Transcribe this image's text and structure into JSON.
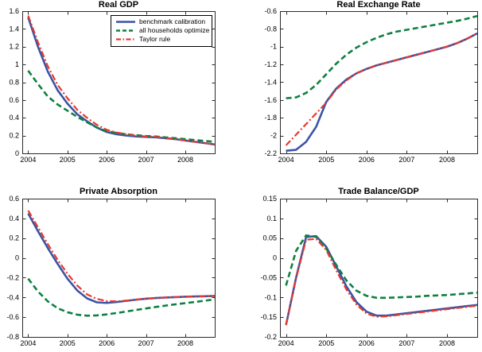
{
  "figure": {
    "background": "#ffffff",
    "axis_color": "#2a2a2a",
    "text_color": "#000000"
  },
  "legend": {
    "position": "top-right-inside-first-chart",
    "entries": [
      {
        "label": "benchmark calibration",
        "color": "#3a54a5",
        "dash": "solid"
      },
      {
        "label": "all households optimize",
        "color": "#0e8040",
        "dash": "dashed"
      },
      {
        "label": "Taylor rule",
        "color": "#e8392d",
        "dash": "dashdot"
      }
    ]
  },
  "chart_data": [
    {
      "type": "line",
      "title": "Real GDP",
      "xlabel": "",
      "ylabel": "",
      "xlim": [
        2003.85,
        2008.75
      ],
      "ylim": [
        0,
        1.6
      ],
      "xticks": [
        2004,
        2005,
        2006,
        2007,
        2008
      ],
      "xtick_labels": [
        "2004",
        "2005",
        "2006",
        "2007",
        "2008"
      ],
      "yticks": [
        0,
        0.2,
        0.4,
        0.6,
        0.8,
        1,
        1.2,
        1.4,
        1.6
      ],
      "ytick_labels": [
        "0",
        "0.2",
        "0.4",
        "0.6",
        "0.8",
        "1",
        "1.2",
        "1.4",
        "1.6"
      ],
      "x": [
        2004,
        2004.25,
        2004.5,
        2004.75,
        2005,
        2005.25,
        2005.5,
        2005.75,
        2006,
        2006.25,
        2006.5,
        2006.75,
        2007,
        2007.25,
        2007.5,
        2007.75,
        2008,
        2008.25,
        2008.5,
        2008.75
      ],
      "series": [
        {
          "name": "benchmark calibration",
          "color": "#3a54a5",
          "dash": "solid",
          "values": [
            1.53,
            1.2,
            0.92,
            0.71,
            0.56,
            0.44,
            0.36,
            0.29,
            0.24,
            0.215,
            0.2,
            0.19,
            0.185,
            0.18,
            0.17,
            0.16,
            0.145,
            0.13,
            0.115,
            0.1
          ]
        },
        {
          "name": "all households optimize",
          "color": "#0e8040",
          "dash": "dashed",
          "values": [
            0.93,
            0.78,
            0.64,
            0.55,
            0.48,
            0.41,
            0.35,
            0.29,
            0.25,
            0.23,
            0.215,
            0.205,
            0.195,
            0.19,
            0.18,
            0.17,
            0.16,
            0.15,
            0.14,
            0.13
          ]
        },
        {
          "name": "Taylor rule",
          "color": "#e8392d",
          "dash": "dashdot",
          "values": [
            1.55,
            1.25,
            0.98,
            0.77,
            0.62,
            0.49,
            0.4,
            0.32,
            0.265,
            0.235,
            0.215,
            0.2,
            0.19,
            0.185,
            0.175,
            0.16,
            0.145,
            0.13,
            0.115,
            0.1
          ]
        }
      ]
    },
    {
      "type": "line",
      "title": "Real Exchange Rate",
      "xlabel": "",
      "ylabel": "",
      "xlim": [
        2003.85,
        2008.75
      ],
      "ylim": [
        -2.2,
        -0.6
      ],
      "xticks": [
        2004,
        2005,
        2006,
        2007,
        2008
      ],
      "xtick_labels": [
        "2004",
        "2005",
        "2006",
        "2007",
        "2008"
      ],
      "yticks": [
        -2.2,
        -2,
        -1.8,
        -1.6,
        -1.4,
        -1.2,
        -1,
        -0.8,
        -0.6
      ],
      "ytick_labels": [
        "-2.2",
        "-2",
        "-1.8",
        "-1.6",
        "-1.4",
        "-1.2",
        "-1",
        "-0.8",
        "-0.6"
      ],
      "x": [
        2004,
        2004.25,
        2004.5,
        2004.75,
        2005,
        2005.25,
        2005.5,
        2005.75,
        2006,
        2006.25,
        2006.5,
        2006.75,
        2007,
        2007.25,
        2007.5,
        2007.75,
        2008,
        2008.25,
        2008.5,
        2008.75
      ],
      "series": [
        {
          "name": "benchmark calibration",
          "color": "#3a54a5",
          "dash": "solid",
          "values": [
            -2.17,
            -2.16,
            -2.07,
            -1.9,
            -1.62,
            -1.47,
            -1.37,
            -1.3,
            -1.25,
            -1.21,
            -1.18,
            -1.15,
            -1.12,
            -1.09,
            -1.06,
            -1.03,
            -1.0,
            -0.96,
            -0.91,
            -0.85
          ]
        },
        {
          "name": "all households optimize",
          "color": "#0e8040",
          "dash": "dashed",
          "values": [
            -1.58,
            -1.57,
            -1.52,
            -1.43,
            -1.31,
            -1.19,
            -1.09,
            -1.01,
            -0.95,
            -0.9,
            -0.86,
            -0.83,
            -0.81,
            -0.79,
            -0.77,
            -0.75,
            -0.73,
            -0.71,
            -0.685,
            -0.655
          ]
        },
        {
          "name": "Taylor rule",
          "color": "#e8392d",
          "dash": "dashdot",
          "values": [
            -2.11,
            -1.99,
            -1.87,
            -1.75,
            -1.63,
            -1.48,
            -1.38,
            -1.3,
            -1.25,
            -1.21,
            -1.18,
            -1.15,
            -1.12,
            -1.09,
            -1.06,
            -1.03,
            -1.0,
            -0.96,
            -0.91,
            -0.85
          ]
        }
      ]
    },
    {
      "type": "line",
      "title": "Private Absorption",
      "xlabel": "",
      "ylabel": "",
      "xlim": [
        2003.85,
        2008.75
      ],
      "ylim": [
        -0.8,
        0.6
      ],
      "xticks": [
        2004,
        2005,
        2006,
        2007,
        2008
      ],
      "xtick_labels": [
        "2004",
        "2005",
        "2006",
        "2007",
        "2008"
      ],
      "yticks": [
        -0.8,
        -0.6,
        -0.4,
        -0.2,
        0,
        0.2,
        0.4,
        0.6
      ],
      "ytick_labels": [
        "-0.8",
        "-0.6",
        "-0.4",
        "-0.2",
        "0",
        "0.2",
        "0.4",
        "0.6"
      ],
      "x": [
        2004,
        2004.25,
        2004.5,
        2004.75,
        2005,
        2005.25,
        2005.5,
        2005.75,
        2006,
        2006.25,
        2006.5,
        2006.75,
        2007,
        2007.25,
        2007.5,
        2007.75,
        2008,
        2008.25,
        2008.5,
        2008.75
      ],
      "series": [
        {
          "name": "benchmark calibration",
          "color": "#3a54a5",
          "dash": "solid",
          "values": [
            0.45,
            0.27,
            0.1,
            -0.06,
            -0.21,
            -0.33,
            -0.41,
            -0.45,
            -0.456,
            -0.447,
            -0.435,
            -0.423,
            -0.413,
            -0.406,
            -0.401,
            -0.397,
            -0.393,
            -0.39,
            -0.388,
            -0.385
          ]
        },
        {
          "name": "all households optimize",
          "color": "#0e8040",
          "dash": "dashed",
          "values": [
            -0.21,
            -0.34,
            -0.44,
            -0.51,
            -0.55,
            -0.575,
            -0.585,
            -0.582,
            -0.572,
            -0.558,
            -0.543,
            -0.527,
            -0.512,
            -0.497,
            -0.483,
            -0.47,
            -0.458,
            -0.446,
            -0.433,
            -0.42
          ]
        },
        {
          "name": "Taylor rule",
          "color": "#e8392d",
          "dash": "dashdot",
          "values": [
            0.48,
            0.31,
            0.14,
            -0.02,
            -0.16,
            -0.28,
            -0.37,
            -0.415,
            -0.437,
            -0.44,
            -0.432,
            -0.422,
            -0.413,
            -0.406,
            -0.401,
            -0.397,
            -0.393,
            -0.39,
            -0.388,
            -0.385
          ]
        }
      ]
    },
    {
      "type": "line",
      "title": "Trade Balance/GDP",
      "xlabel": "",
      "ylabel": "",
      "xlim": [
        2003.85,
        2008.75
      ],
      "ylim": [
        -0.2,
        0.15
      ],
      "xticks": [
        2004,
        2005,
        2006,
        2007,
        2008
      ],
      "xtick_labels": [
        "2004",
        "2005",
        "2006",
        "2007",
        "2008"
      ],
      "yticks": [
        -0.2,
        -0.15,
        -0.1,
        -0.05,
        0,
        0.05,
        0.1,
        0.15
      ],
      "ytick_labels": [
        "-0.2",
        "-0.15",
        "-0.1",
        "-0.05",
        "0",
        "0.05",
        "0.1",
        "0.15"
      ],
      "x": [
        2004,
        2004.25,
        2004.5,
        2004.75,
        2005,
        2005.25,
        2005.5,
        2005.75,
        2006,
        2006.25,
        2006.5,
        2006.75,
        2007,
        2007.25,
        2007.5,
        2007.75,
        2008,
        2008.25,
        2008.5,
        2008.75
      ],
      "series": [
        {
          "name": "benchmark calibration",
          "color": "#3a54a5",
          "dash": "solid",
          "values": [
            -0.17,
            -0.05,
            0.053,
            0.055,
            0.028,
            -0.022,
            -0.072,
            -0.112,
            -0.136,
            -0.146,
            -0.146,
            -0.143,
            -0.14,
            -0.137,
            -0.134,
            -0.131,
            -0.128,
            -0.125,
            -0.122,
            -0.119
          ]
        },
        {
          "name": "all households optimize",
          "color": "#0e8040",
          "dash": "dashed",
          "values": [
            -0.07,
            0.018,
            0.057,
            0.053,
            0.024,
            -0.018,
            -0.057,
            -0.083,
            -0.096,
            -0.101,
            -0.101,
            -0.1,
            -0.099,
            -0.098,
            -0.096,
            -0.095,
            -0.094,
            -0.092,
            -0.09,
            -0.088
          ]
        },
        {
          "name": "Taylor rule",
          "color": "#e8392d",
          "dash": "dashdot",
          "values": [
            -0.17,
            -0.052,
            0.046,
            0.048,
            0.02,
            -0.032,
            -0.08,
            -0.118,
            -0.141,
            -0.149,
            -0.148,
            -0.145,
            -0.142,
            -0.139,
            -0.136,
            -0.133,
            -0.13,
            -0.127,
            -0.124,
            -0.121
          ]
        }
      ]
    }
  ]
}
